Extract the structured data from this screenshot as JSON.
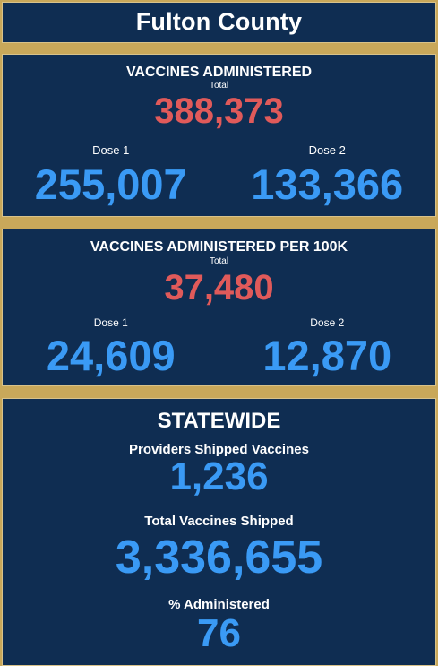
{
  "header": {
    "title": "Fulton County"
  },
  "vaccines": {
    "heading": "VACCINES ADMINISTERED",
    "total_label": "Total",
    "total_value": "388,373",
    "dose1_label": "Dose 1",
    "dose1_value": "255,007",
    "dose2_label": "Dose 2",
    "dose2_value": "133,366"
  },
  "per100k": {
    "heading": "VACCINES ADMINISTERED PER 100K",
    "total_label": "Total",
    "total_value": "37,480",
    "dose1_label": "Dose 1",
    "dose1_value": "24,609",
    "dose2_label": "Dose 2",
    "dose2_value": "12,870"
  },
  "statewide": {
    "heading": "STATEWIDE",
    "providers_label": "Providers Shipped Vaccines",
    "providers_value": "1,236",
    "shipped_label": "Total Vaccines Shipped",
    "shipped_value": "3,336,655",
    "administered_label": "% Administered",
    "administered_value": "76"
  },
  "colors": {
    "panel_bg": "#0f2d52",
    "frame_gold": "#c9a85a",
    "total_red": "#e05a5a",
    "dose_blue": "#3a9af5"
  }
}
